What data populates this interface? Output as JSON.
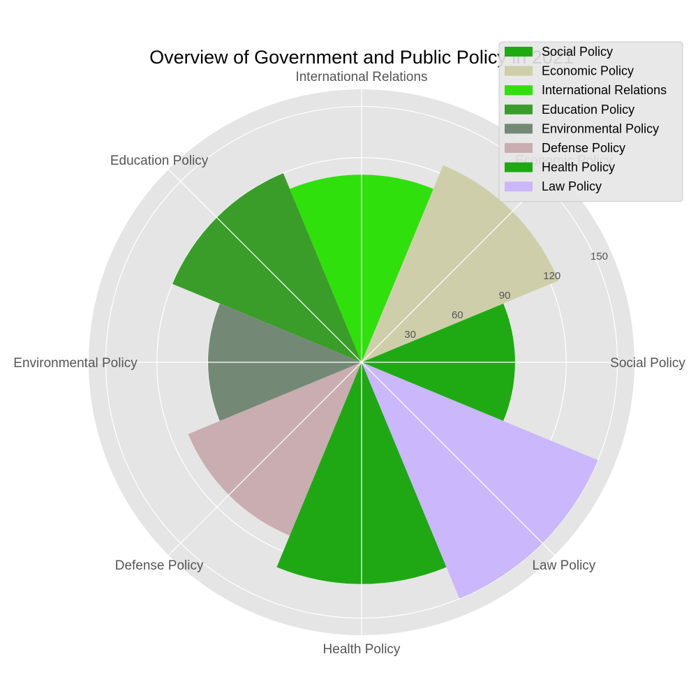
{
  "chart_data": {
    "type": "rose",
    "title": "Overview of Government and Public Policy in 2021",
    "categories": [
      "Social Policy",
      "Economic Policy",
      "International Relations",
      "Education Policy",
      "Environmental Policy",
      "Defense Policy",
      "Health Policy",
      "Law Policy"
    ],
    "values": [
      90,
      125,
      110,
      120,
      90,
      110,
      130,
      150
    ],
    "colors": [
      "#1faa14",
      "#cecfaa",
      "#30e00c",
      "#3a9d2a",
      "#738976",
      "#c9adb0",
      "#1fa814",
      "#cab7fc"
    ],
    "radial_ticks": [
      30,
      60,
      90,
      120,
      150
    ],
    "radial_tick_labels": [
      "30",
      "60",
      "90",
      "120",
      "150"
    ],
    "rmax": 160,
    "legend_placement": "top-right",
    "grid": true
  }
}
